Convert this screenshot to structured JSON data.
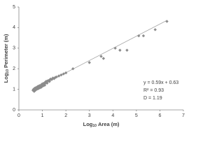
{
  "chart_data": {
    "type": "scatter",
    "xlabel": [
      "Log",
      "10",
      "Area (m)"
    ],
    "ylabel": [
      "Log",
      "10",
      "Perimeter (m)"
    ],
    "x": [
      0.6,
      0.62,
      0.65,
      0.67,
      0.7,
      0.72,
      0.75,
      0.78,
      0.8,
      0.82,
      0.85,
      0.88,
      0.9,
      0.93,
      0.95,
      0.98,
      1.0,
      1.03,
      1.05,
      1.08,
      1.1,
      1.13,
      1.15,
      1.18,
      1.2,
      1.25,
      1.3,
      1.35,
      1.4,
      1.45,
      1.5,
      1.55,
      1.6,
      0.65,
      0.7,
      0.75,
      0.8,
      0.85,
      0.9,
      0.95,
      1.0,
      1.05,
      1.1,
      1.2,
      1.3,
      1.7,
      1.8,
      1.9,
      2.0,
      2.3,
      3.0,
      3.5,
      3.6,
      4.1,
      4.3,
      4.6,
      5.1,
      5.3,
      5.8,
      6.3
    ],
    "values": [
      0.95,
      1.0,
      0.98,
      1.05,
      1.02,
      1.08,
      1.05,
      1.12,
      1.1,
      1.15,
      1.12,
      1.18,
      1.15,
      1.2,
      1.18,
      1.25,
      1.22,
      1.28,
      1.25,
      1.3,
      1.32,
      1.3,
      1.38,
      1.35,
      1.4,
      1.42,
      1.45,
      1.5,
      1.48,
      1.55,
      1.52,
      1.58,
      1.6,
      0.9,
      0.95,
      1.0,
      1.02,
      1.05,
      1.08,
      1.1,
      1.15,
      1.18,
      1.2,
      1.3,
      1.38,
      1.65,
      1.7,
      1.75,
      1.8,
      2.0,
      2.3,
      2.6,
      2.5,
      3.0,
      2.9,
      2.9,
      3.6,
      3.6,
      3.9,
      4.3
    ],
    "color": "#8c8c8c",
    "trendline": {
      "x": [
        0.6,
        6.3
      ],
      "values": [
        0.98,
        4.35
      ],
      "color": "#a6a6a6"
    },
    "annotations": [
      "y = 0.59x + 0.63",
      "R² = 0.93",
      "D = 1.19"
    ],
    "xlim": [
      0,
      7
    ],
    "xticks": [
      0,
      1,
      2,
      3,
      4,
      5,
      6,
      7
    ],
    "ylim": [
      0,
      5
    ],
    "yticks": [
      0,
      1,
      2,
      3,
      4,
      5
    ],
    "grid": false
  }
}
